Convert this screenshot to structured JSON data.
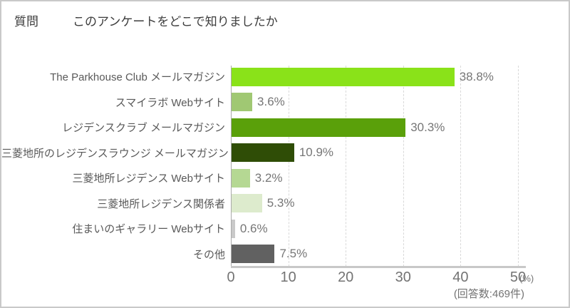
{
  "header": {
    "label": "質問",
    "title": "このアンケートをどこで知りましたか"
  },
  "chart_data": {
    "type": "bar",
    "orientation": "horizontal",
    "title": "このアンケートをどこで知りましたか",
    "categories": [
      "The Parkhouse Club メールマガジン",
      "スマイラボ Webサイト",
      "レジデンスクラブ メールマガジン",
      "三菱地所のレジデンスラウンジ メールマガジン",
      "三菱地所レジデンス Webサイト",
      "三菱地所レジデンス関係者",
      "住まいのギャラリー Webサイト",
      "その他"
    ],
    "values": [
      38.8,
      3.6,
      30.3,
      10.9,
      3.2,
      5.3,
      0.6,
      7.5
    ],
    "value_labels": [
      "38.8%",
      "3.6%",
      "30.3%",
      "10.9%",
      "3.2%",
      "5.3%",
      "0.6%",
      "7.5%"
    ],
    "bar_colors": [
      "#8ae219",
      "#a0c873",
      "#5aa00a",
      "#2f4d06",
      "#b5d893",
      "#ddebcd",
      "#c9c9c9",
      "#616161"
    ],
    "x_ticks": [
      0,
      10,
      20,
      30,
      40,
      50
    ],
    "xlim": [
      0,
      50
    ],
    "x_unit": "(%)",
    "xlabel": "",
    "ylabel": "",
    "grid": "dashed-vertical",
    "legend": "none",
    "footer": "(回答数:469件)"
  }
}
